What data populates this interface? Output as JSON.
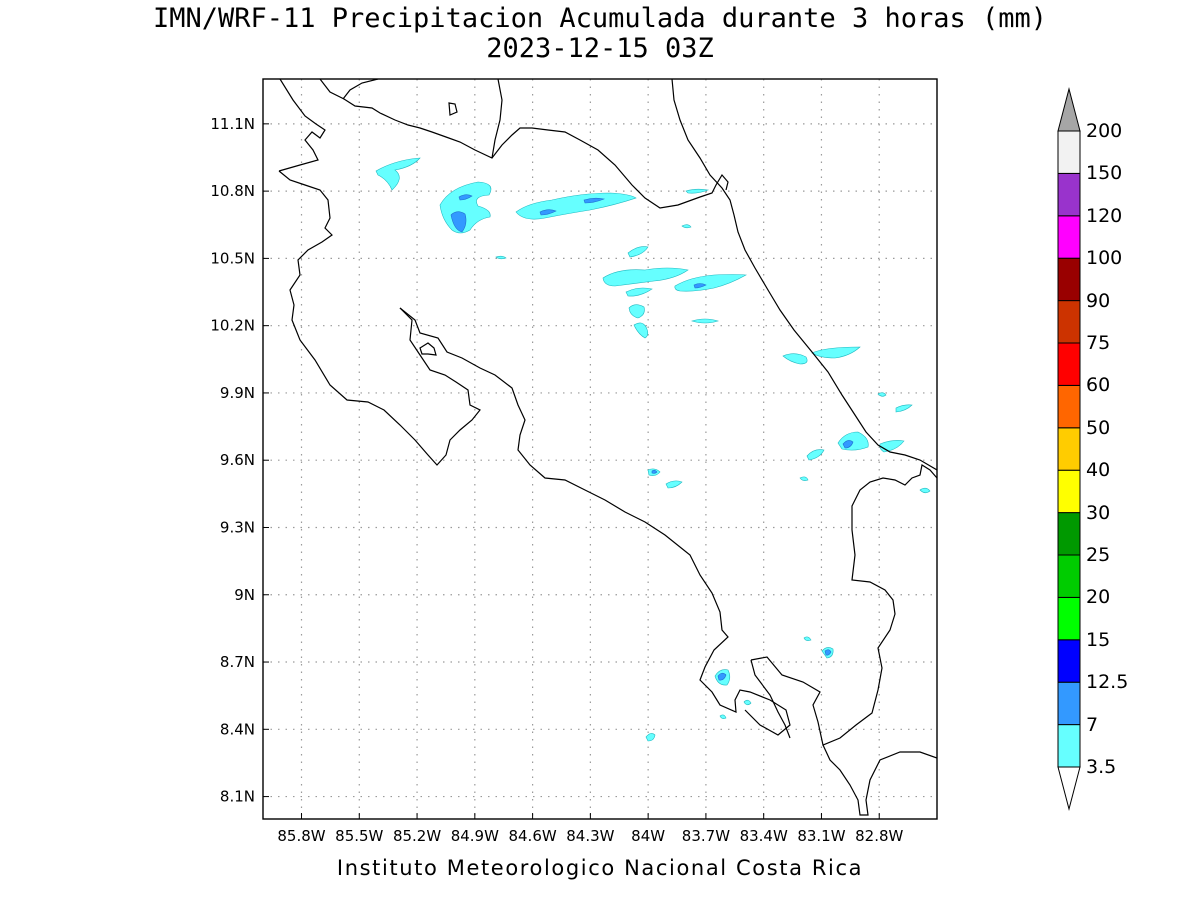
{
  "title": {
    "line1": "IMN/WRF-11 Precipitacion Acumulada durante 3 horas (mm)",
    "line2": "2023-12-15 03Z"
  },
  "footer": "Instituto Meteorologico Nacional Costa Rica",
  "axes": {
    "x_ticks": [
      {
        "label": "85.8W",
        "lon": -85.8
      },
      {
        "label": "85.5W",
        "lon": -85.5
      },
      {
        "label": "85.2W",
        "lon": -85.2
      },
      {
        "label": "84.9W",
        "lon": -84.9
      },
      {
        "label": "84.6W",
        "lon": -84.6
      },
      {
        "label": "84.3W",
        "lon": -84.3
      },
      {
        "label": "84W",
        "lon": -84.0
      },
      {
        "label": "83.7W",
        "lon": -83.7
      },
      {
        "label": "83.4W",
        "lon": -83.4
      },
      {
        "label": "83.1W",
        "lon": -83.1
      },
      {
        "label": "82.8W",
        "lon": -82.8
      }
    ],
    "y_ticks": [
      {
        "label": "11.1N",
        "lat": 11.1
      },
      {
        "label": "10.8N",
        "lat": 10.8
      },
      {
        "label": "10.5N",
        "lat": 10.5
      },
      {
        "label": "10.2N",
        "lat": 10.2
      },
      {
        "label": "9.9N",
        "lat": 9.9
      },
      {
        "label": "9.6N",
        "lat": 9.6
      },
      {
        "label": "9.3N",
        "lat": 9.3
      },
      {
        "label": "9N",
        "lat": 9.0
      },
      {
        "label": "8.7N",
        "lat": 8.7
      },
      {
        "label": "8.4N",
        "lat": 8.4
      },
      {
        "label": "8.1N",
        "lat": 8.1
      }
    ],
    "lon_range": [
      -86.0,
      -82.5
    ],
    "lat_range": [
      8.0,
      11.3
    ],
    "grid": true
  },
  "colorbar": {
    "labels": [
      "3.5",
      "7",
      "12.5",
      "15",
      "20",
      "25",
      "30",
      "40",
      "50",
      "60",
      "75",
      "90",
      "100",
      "120",
      "150",
      "200"
    ],
    "colors": [
      "#66ffff",
      "#3399ff",
      "#0000ff",
      "#00ff00",
      "#00cc00",
      "#009900",
      "#ffff00",
      "#ffcc00",
      "#ff6600",
      "#ff0000",
      "#cc3300",
      "#990000",
      "#ff00ff",
      "#9933cc",
      "#f2f2f2",
      "#a6a6a6"
    ]
  }
}
